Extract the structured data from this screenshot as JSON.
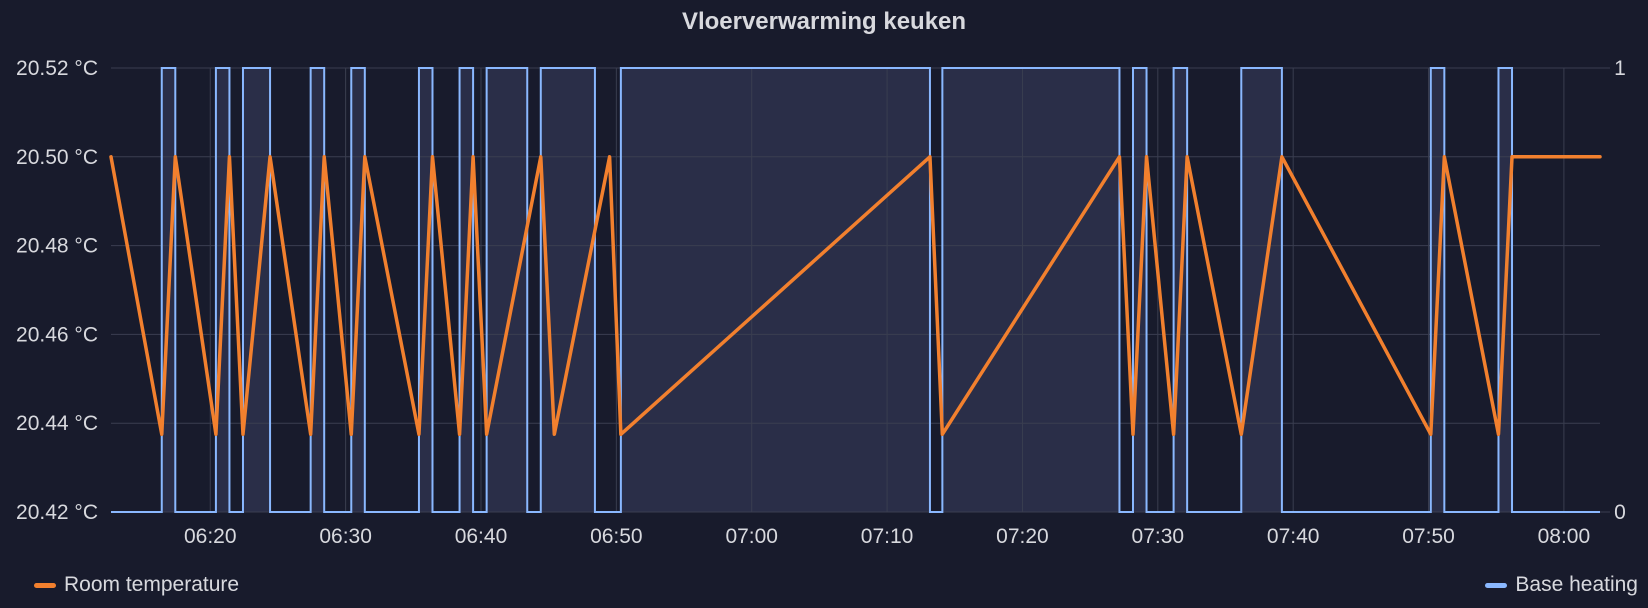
{
  "chart_data": {
    "type": "line",
    "title": "Vloerverwarming keuken",
    "x_ticks": [
      "06:20",
      "06:30",
      "06:40",
      "06:50",
      "07:00",
      "07:10",
      "07:20",
      "07:30",
      "07:40",
      "07:50",
      "08:00"
    ],
    "y_left": {
      "ticks": [
        "20.42 °C",
        "20.44 °C",
        "20.46 °C",
        "20.48 °C",
        "20.50 °C",
        "20.52 °C"
      ],
      "ylim": [
        20.42,
        20.52
      ]
    },
    "y_right": {
      "ticks": [
        "0",
        "1"
      ],
      "ylim": [
        0,
        1
      ]
    },
    "grid": true,
    "legend_placement": "bottom",
    "series": [
      {
        "name": "Room temperature",
        "color": "#f2802e",
        "axis": "left",
        "points": [
          [
            "06:12:40",
            20.5
          ],
          [
            "06:16:25",
            20.4375
          ],
          [
            "06:17:25",
            20.5
          ],
          [
            "06:20:25",
            20.4375
          ],
          [
            "06:21:25",
            20.5
          ],
          [
            "06:22:25",
            20.4375
          ],
          [
            "06:24:25",
            20.5
          ],
          [
            "06:27:25",
            20.4375
          ],
          [
            "06:28:25",
            20.5
          ],
          [
            "06:30:25",
            20.4375
          ],
          [
            "06:31:25",
            20.5
          ],
          [
            "06:35:25",
            20.4375
          ],
          [
            "06:36:25",
            20.5
          ],
          [
            "06:38:25",
            20.4375
          ],
          [
            "06:39:25",
            20.5
          ],
          [
            "06:40:25",
            20.4375
          ],
          [
            "06:44:25",
            20.5
          ],
          [
            "06:45:25",
            20.4375
          ],
          [
            "06:49:30",
            20.5
          ],
          [
            "06:50:20",
            20.4375
          ],
          [
            "07:13:10",
            20.5
          ],
          [
            "07:14:05",
            20.4375
          ],
          [
            "07:27:10",
            20.5
          ],
          [
            "07:28:10",
            20.4375
          ],
          [
            "07:29:10",
            20.5
          ],
          [
            "07:31:10",
            20.4375
          ],
          [
            "07:32:10",
            20.5
          ],
          [
            "07:36:10",
            20.4375
          ],
          [
            "07:39:10",
            20.5
          ],
          [
            "07:50:10",
            20.4375
          ],
          [
            "07:51:10",
            20.5
          ],
          [
            "07:55:10",
            20.4375
          ],
          [
            "07:56:10",
            20.5
          ],
          [
            "08:02:40",
            20.5
          ]
        ]
      },
      {
        "name": "Base heating",
        "color": "#8ab8ff",
        "axis": "right",
        "on_intervals": [
          [
            "06:16:25",
            "06:17:25"
          ],
          [
            "06:20:25",
            "06:21:25"
          ],
          [
            "06:22:25",
            "06:24:25"
          ],
          [
            "06:27:25",
            "06:28:25"
          ],
          [
            "06:30:25",
            "06:31:25"
          ],
          [
            "06:35:25",
            "06:36:25"
          ],
          [
            "06:38:25",
            "06:39:25"
          ],
          [
            "06:40:25",
            "06:43:25"
          ],
          [
            "06:44:25",
            "06:48:25"
          ],
          [
            "06:50:20",
            "07:13:10"
          ],
          [
            "07:14:05",
            "07:27:10"
          ],
          [
            "07:28:10",
            "07:29:10"
          ],
          [
            "07:31:10",
            "07:32:10"
          ],
          [
            "07:36:10",
            "07:39:10"
          ],
          [
            "07:50:10",
            "07:51:10"
          ],
          [
            "07:55:10",
            "07:56:10"
          ]
        ]
      }
    ]
  },
  "colors": {
    "background": "#181b2c",
    "grid": "#3a3e50",
    "text": "#d8d9de"
  }
}
